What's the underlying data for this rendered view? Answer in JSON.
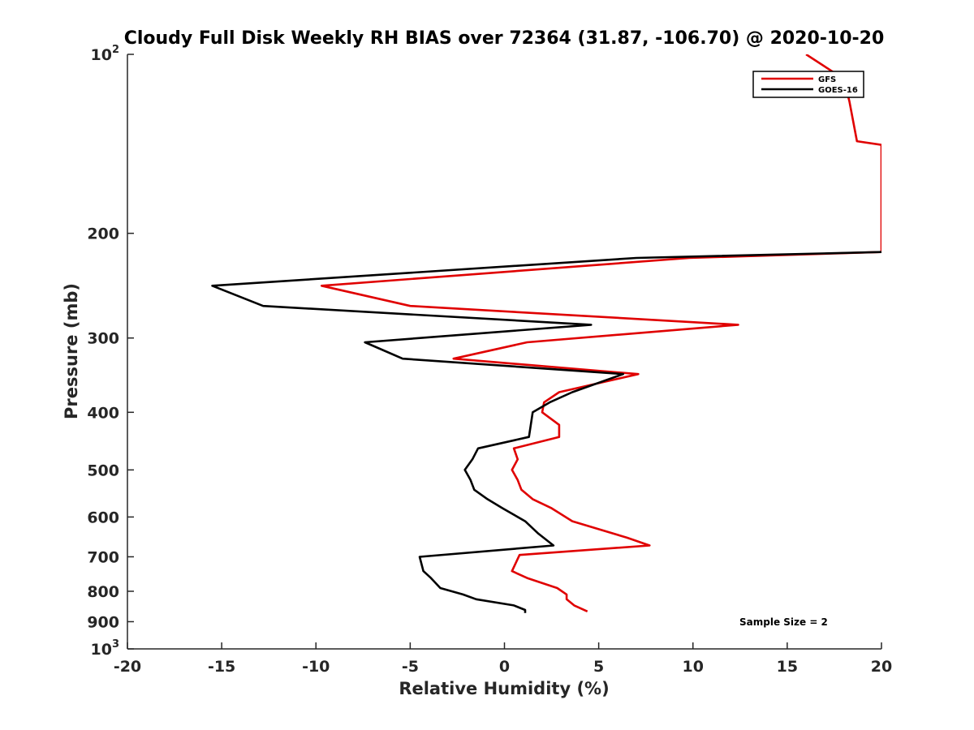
{
  "chart_data": {
    "type": "line",
    "title": "Cloudy Full Disk Weekly RH BIAS over 72364 (31.87, -106.70) @ 2020-10-20",
    "xlabel": "Relative Humidity (%)",
    "ylabel": "Pressure (mb)",
    "xlim": [
      -20,
      20
    ],
    "ylim": [
      1000,
      100
    ],
    "yscale": "log",
    "y_reversed": true,
    "x_ticks": [
      "-20",
      "-15",
      "-10",
      "-5",
      "0",
      "5",
      "10",
      "15",
      "20"
    ],
    "y_ticks": [
      {
        "value": 100,
        "base": "10",
        "exp": "2"
      },
      {
        "value": 200,
        "label": "200"
      },
      {
        "value": 300,
        "label": "300"
      },
      {
        "value": 400,
        "label": "400"
      },
      {
        "value": 500,
        "label": "500"
      },
      {
        "value": 600,
        "label": "600"
      },
      {
        "value": 700,
        "label": "700"
      },
      {
        "value": 800,
        "label": "800"
      },
      {
        "value": 900,
        "label": "900"
      },
      {
        "value": 1000,
        "base": "10",
        "exp": "3"
      }
    ],
    "legend_position": "top-right",
    "annotation": "Sample Size = 2",
    "series": [
      {
        "name": "GFS",
        "color": "#e00000",
        "x": [
          16.0,
          18.0,
          18.3,
          18.7,
          20.0,
          20.0,
          9.8,
          -9.7,
          -5.0,
          12.4,
          1.2,
          -2.7,
          7.1,
          2.9,
          2.1,
          2.0,
          2.9,
          2.9,
          0.5,
          0.7,
          0.4,
          0.7,
          0.9,
          1.5,
          2.5,
          3.6,
          6.5,
          7.7,
          0.8,
          0.4,
          1.2,
          2.8,
          3.3,
          3.3,
          3.7,
          4.4
        ],
        "y": [
          100,
          110,
          120,
          140,
          142,
          215,
          220,
          245,
          265,
          285,
          305,
          325,
          345,
          370,
          385,
          400,
          420,
          440,
          460,
          480,
          500,
          520,
          540,
          560,
          580,
          610,
          650,
          670,
          695,
          740,
          760,
          790,
          810,
          825,
          845,
          865
        ]
      },
      {
        "name": "GOES-16",
        "color": "#000000",
        "x": [
          20.0,
          7.0,
          -15.5,
          -12.8,
          4.6,
          -7.4,
          -5.4,
          6.3,
          3.6,
          2.4,
          1.5,
          1.3,
          -1.4,
          -1.7,
          -2.1,
          -1.8,
          -1.6,
          -0.9,
          -0.1,
          1.1,
          1.8,
          2.6,
          -4.5,
          -4.3,
          -3.9,
          -3.4,
          -2.2,
          -1.5,
          0.5,
          1.1,
          1.1
        ],
        "y": [
          215,
          220,
          245,
          265,
          285,
          305,
          325,
          345,
          370,
          385,
          400,
          440,
          460,
          480,
          500,
          520,
          540,
          560,
          580,
          610,
          640,
          670,
          700,
          740,
          760,
          790,
          810,
          825,
          845,
          860,
          870
        ]
      }
    ]
  }
}
